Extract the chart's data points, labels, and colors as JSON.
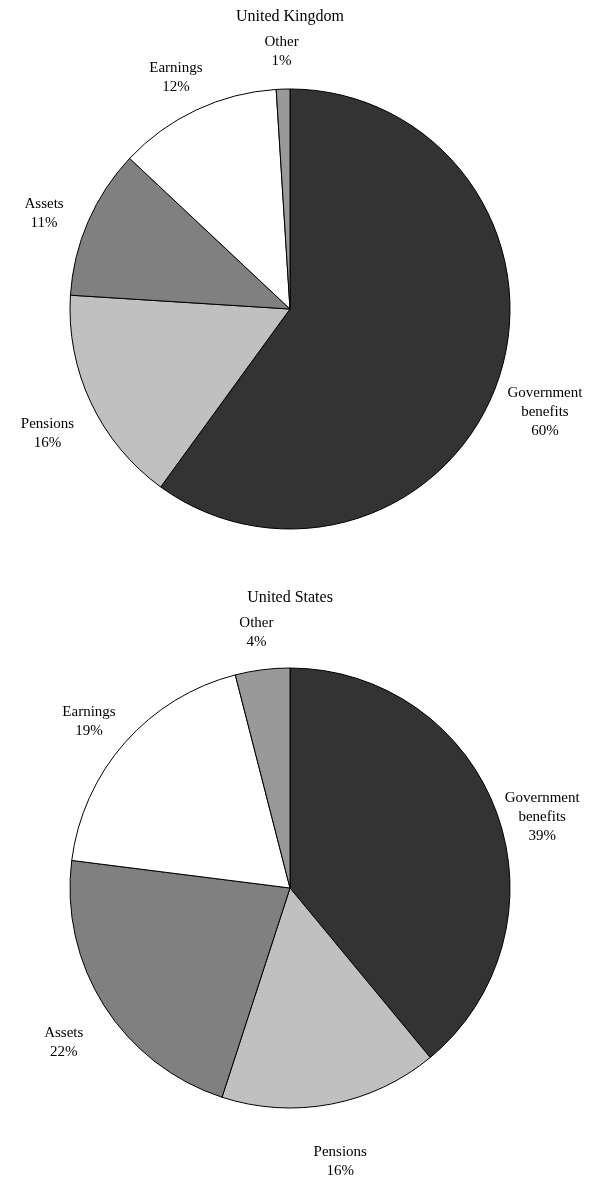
{
  "chart_data": [
    {
      "type": "pie",
      "title": "United Kingdom",
      "categories": [
        "Government benefits",
        "Pensions",
        "Assets",
        "Earnings",
        "Other"
      ],
      "values": [
        60,
        16,
        11,
        12,
        1
      ],
      "colors": [
        "#333333",
        "#c0c0c0",
        "#808080",
        "#ffffff",
        "#999999"
      ],
      "value_labels": [
        "60%",
        "16%",
        "11%",
        "12%",
        "1%"
      ]
    },
    {
      "type": "pie",
      "title": "United States",
      "categories": [
        "Government benefits",
        "Pensions",
        "Assets",
        "Earnings",
        "Other"
      ],
      "values": [
        39,
        16,
        22,
        19,
        4
      ],
      "colors": [
        "#333333",
        "#c0c0c0",
        "#808080",
        "#ffffff",
        "#999999"
      ],
      "value_labels": [
        "39%",
        "16%",
        "22%",
        "19%",
        "4%"
      ]
    }
  ]
}
